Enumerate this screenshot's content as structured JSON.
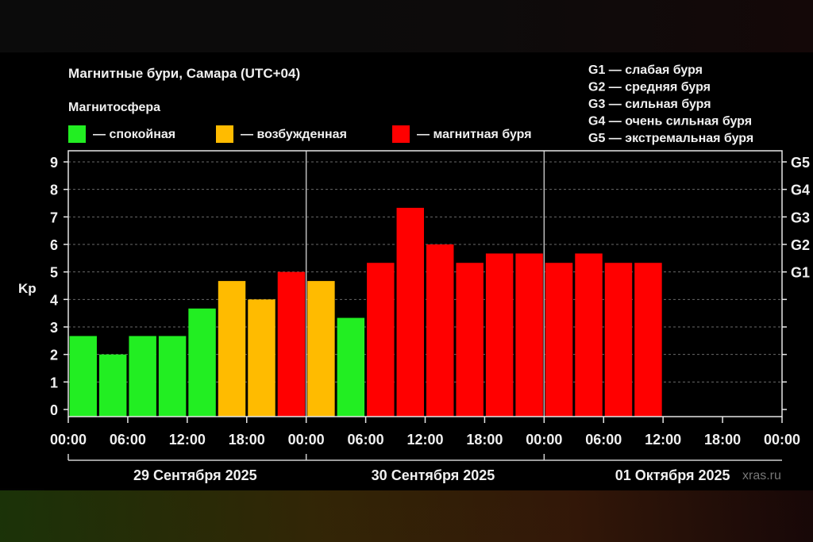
{
  "chart_data": {
    "type": "bar",
    "title": "Магнитные бури, Самара (UTC+04)",
    "subtitle": "Магнитосфера",
    "ylabel": "Kp",
    "ylim": [
      0,
      9
    ],
    "yticks": [
      "0",
      "1",
      "2",
      "3",
      "4",
      "5",
      "6",
      "7",
      "8",
      "9"
    ],
    "right_ticks": [
      {
        "kp": 5,
        "label": "G1"
      },
      {
        "kp": 6,
        "label": "G2"
      },
      {
        "kp": 7,
        "label": "G3"
      },
      {
        "kp": 8,
        "label": "G4"
      },
      {
        "kp": 9,
        "label": "G5"
      }
    ],
    "xticks": [
      "00:00",
      "06:00",
      "12:00",
      "18:00",
      "00:00",
      "06:00",
      "12:00",
      "18:00",
      "00:00",
      "06:00",
      "12:00",
      "18:00",
      "00:00"
    ],
    "days": [
      "29 Сентября 2025",
      "30 Сентября 2025",
      "01 Октября 2025"
    ],
    "slots_per_day": 8,
    "total_slots": 24,
    "values": [
      2.67,
      2.0,
      2.67,
      2.67,
      3.67,
      4.67,
      4.0,
      5.0,
      4.67,
      3.33,
      5.33,
      7.33,
      6.0,
      5.33,
      5.67,
      5.67,
      5.33,
      5.67,
      5.33,
      5.33
    ],
    "colors": {
      "quiet": "#22ee22",
      "disturbed": "#ffbb00",
      "storm": "#ff0000"
    },
    "bar_classes": [
      "quiet",
      "quiet",
      "quiet",
      "quiet",
      "quiet",
      "disturbed",
      "disturbed",
      "storm",
      "disturbed",
      "quiet",
      "storm",
      "storm",
      "storm",
      "storm",
      "storm",
      "storm",
      "storm",
      "storm",
      "storm",
      "storm"
    ],
    "legend": [
      {
        "class": "quiet",
        "label": "— спокойная"
      },
      {
        "class": "disturbed",
        "label": "— возбужденная"
      },
      {
        "class": "storm",
        "label": "— магнитная буря"
      }
    ],
    "scale_legend": [
      "G1 — слабая буря",
      "G2 — средняя буря",
      "G3 — сильная буря",
      "G4 — очень сильная буря",
      "G5 — экстремальная буря"
    ],
    "grid": true,
    "watermark": "xras.ru"
  }
}
